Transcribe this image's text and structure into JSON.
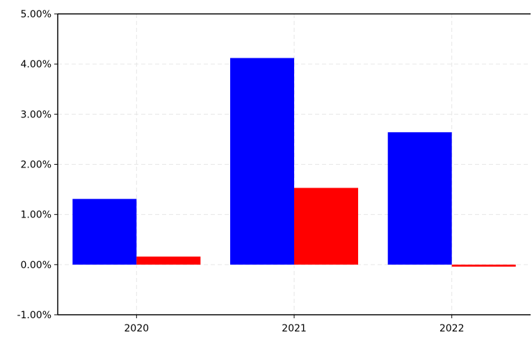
{
  "chart_data": {
    "type": "bar",
    "title": "",
    "xlabel": "",
    "ylabel": "",
    "categories": [
      "2020",
      "2021",
      "2022"
    ],
    "series": [
      {
        "values": [
          1.31,
          4.12,
          2.64
        ],
        "color": "#0000ff"
      },
      {
        "values": [
          0.16,
          1.53,
          -0.04
        ],
        "color": "#ff0000"
      }
    ],
    "ylim": [
      -1.0,
      5.0
    ],
    "yticks": [
      -1.0,
      0.0,
      1.0,
      2.0,
      3.0,
      4.0,
      5.0
    ],
    "ytick_labels": [
      "-1.00%",
      "0.00%",
      "1.00%",
      "2.00%",
      "3.00%",
      "4.00%",
      "5.00%"
    ],
    "grid": true,
    "legend": "none"
  }
}
